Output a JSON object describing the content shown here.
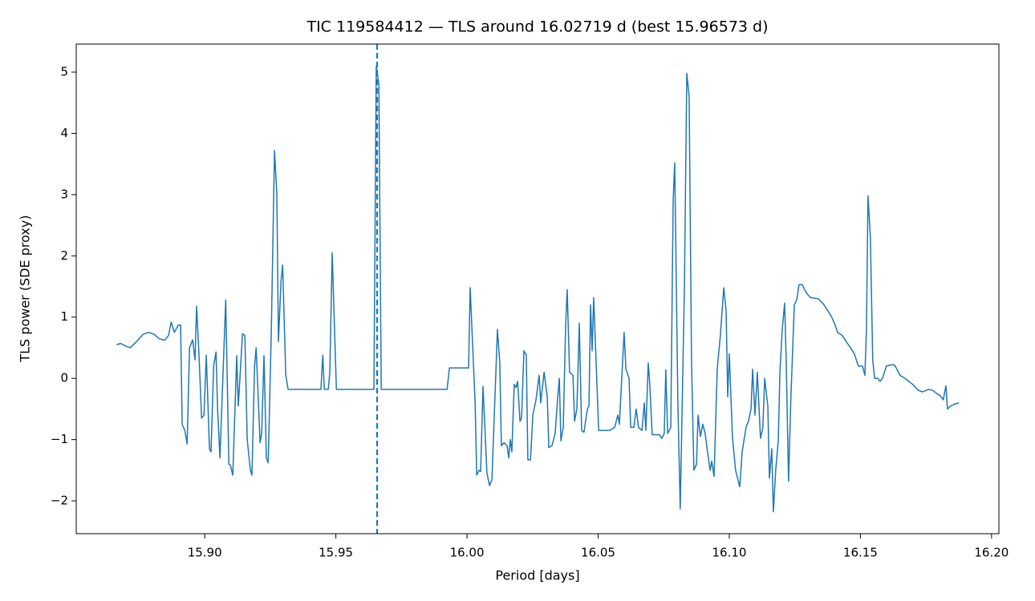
{
  "chart_data": {
    "type": "line",
    "title": "TIC 119584412 — TLS around 16.02719 d (best 15.96573 d)",
    "xlabel": "Period [days]",
    "ylabel": "TLS power (SDE proxy)",
    "xlim": [
      15.851,
      16.2028
    ],
    "ylim": [
      -2.536,
      5.458
    ],
    "xticks": [
      {
        "value": 15.9,
        "label": "15.90"
      },
      {
        "value": 15.95,
        "label": "15.95"
      },
      {
        "value": 16.0,
        "label": "16.00"
      },
      {
        "value": 16.05,
        "label": "16.05"
      },
      {
        "value": 16.1,
        "label": "16.10"
      },
      {
        "value": 16.15,
        "label": "16.15"
      },
      {
        "value": 16.2,
        "label": "16.20"
      }
    ],
    "yticks": [
      {
        "value": -2,
        "label": "−2"
      },
      {
        "value": -1,
        "label": "−1"
      },
      0,
      1,
      2,
      3,
      4,
      5
    ],
    "grid": false,
    "vline": {
      "x": 15.96573,
      "color": "#1f77b4",
      "style": "dashed"
    },
    "x": [
      15.8664,
      15.8679,
      15.8703,
      15.8716,
      15.874,
      15.8765,
      15.8786,
      15.8807,
      15.8826,
      15.8847,
      15.8862,
      15.8872,
      15.8884,
      15.8899,
      15.8908,
      15.8914,
      15.8924,
      15.8933,
      15.8942,
      15.8954,
      15.8963,
      15.8969,
      15.8979,
      15.8988,
      15.8997,
      15.9006,
      15.9018,
      15.9024,
      15.9034,
      15.9043,
      15.9049,
      15.9058,
      15.908,
      15.9092,
      15.9098,
      15.9107,
      15.9122,
      15.9128,
      15.9144,
      15.9153,
      15.9162,
      15.9174,
      15.918,
      15.919,
      15.9196,
      15.9211,
      15.9217,
      15.9226,
      15.9235,
      15.9242,
      15.9254,
      15.9266,
      15.9275,
      15.9281,
      15.9291,
      15.9297,
      15.9309,
      15.9318,
      15.9443,
      15.945,
      15.9456,
      15.9471,
      15.9477,
      15.9486,
      15.9502,
      15.9645,
      15.9654,
      15.9664,
      15.9673,
      15.9924,
      15.9933,
      16.0006,
      16.0012,
      16.0031,
      16.0037,
      16.0046,
      16.0052,
      16.0061,
      16.0076,
      16.0086,
      16.0095,
      16.0116,
      16.0125,
      16.0131,
      16.0141,
      16.0153,
      16.0159,
      16.0165,
      16.0171,
      16.018,
      16.0187,
      16.0193,
      16.0202,
      16.0208,
      16.0217,
      16.0226,
      16.0232,
      16.0242,
      16.0251,
      16.0263,
      16.0275,
      16.0281,
      16.0294,
      16.0306,
      16.0312,
      16.0324,
      16.0336,
      16.0346,
      16.0352,
      16.0358,
      16.0367,
      16.0376,
      16.0382,
      16.0391,
      16.0404,
      16.041,
      16.0419,
      16.0428,
      16.0437,
      16.0446,
      16.0459,
      16.0465,
      16.0471,
      16.0477,
      16.0483,
      16.0502,
      16.0544,
      16.0563,
      16.0575,
      16.0581,
      16.0599,
      16.0606,
      16.0618,
      16.0624,
      16.0636,
      16.0645,
      16.0654,
      16.0667,
      16.0676,
      16.0682,
      16.0691,
      16.0697,
      16.0706,
      16.0734,
      16.0743,
      16.0752,
      16.0758,
      16.0765,
      16.0777,
      16.0786,
      16.0792,
      16.0804,
      16.0813,
      16.0829,
      16.0838,
      16.0847,
      16.0856,
      16.0865,
      16.0875,
      16.0881,
      16.089,
      16.0899,
      16.0908,
      16.0917,
      16.0927,
      16.0933,
      16.0942,
      16.0954,
      16.0966,
      16.0979,
      16.0988,
      16.0994,
      16.1,
      16.1012,
      16.1024,
      16.104,
      16.1049,
      16.1064,
      16.1073,
      16.1083,
      16.1089,
      16.1098,
      16.1107,
      16.1119,
      16.1128,
      16.1135,
      16.1147,
      16.1153,
      16.1162,
      16.1168,
      16.1177,
      16.1187,
      16.1193,
      16.1202,
      16.1211,
      16.1217,
      16.1226,
      16.1235,
      16.1248,
      16.1257,
      16.1266,
      16.1278,
      16.1287,
      16.1297,
      16.1309,
      16.1339,
      16.1358,
      16.1376,
      16.1388,
      16.1401,
      16.1413,
      16.1431,
      16.1446,
      16.1462,
      16.1477,
      16.1492,
      16.1508,
      16.1517,
      16.1523,
      16.1529,
      16.1538,
      16.1547,
      16.1554,
      16.1566,
      16.1575,
      16.1584,
      16.1599,
      16.1615,
      16.163,
      16.1639,
      16.1651,
      16.167,
      16.1685,
      16.17,
      16.1722,
      16.1737,
      16.1761,
      16.1777,
      16.1792,
      16.1804,
      16.1816,
      16.1826,
      16.1832,
      16.1844,
      16.1859,
      16.1875
    ],
    "series": [
      {
        "color": "#1f77b4",
        "values": [
          0.55,
          0.57,
          0.52,
          0.5,
          0.6,
          0.72,
          0.75,
          0.72,
          0.65,
          0.62,
          0.7,
          0.92,
          0.75,
          0.87,
          0.87,
          -0.75,
          -0.85,
          -1.07,
          0.5,
          0.63,
          0.3,
          1.18,
          0.3,
          -0.65,
          -0.6,
          0.38,
          -1.15,
          -1.2,
          0.2,
          0.43,
          -0.5,
          -1.3,
          1.28,
          -1.4,
          -1.42,
          -1.58,
          0.37,
          -0.45,
          0.73,
          0.7,
          -1.0,
          -1.5,
          -1.58,
          0.2,
          0.5,
          -1.05,
          -0.9,
          0.37,
          -1.3,
          -1.38,
          0.8,
          3.72,
          3.0,
          0.6,
          1.6,
          1.85,
          0.05,
          -0.18,
          -0.18,
          0.38,
          -0.18,
          -0.18,
          0.1,
          2.05,
          -0.18,
          -0.18,
          5.1,
          4.8,
          -0.18,
          -0.18,
          0.17,
          0.17,
          1.48,
          -0.4,
          -1.58,
          -1.5,
          -1.52,
          -0.13,
          -1.55,
          -1.75,
          -1.65,
          0.8,
          0.25,
          -1.1,
          -1.05,
          -1.1,
          -1.3,
          -1.0,
          -1.2,
          -0.1,
          -0.15,
          -0.05,
          -0.7,
          -0.65,
          0.45,
          0.38,
          -1.33,
          -1.33,
          -0.6,
          -0.35,
          0.05,
          -0.4,
          0.1,
          -0.3,
          -1.13,
          -1.1,
          -0.9,
          -0.3,
          0.0,
          -1.02,
          -0.8,
          0.85,
          1.45,
          0.1,
          0.05,
          -0.7,
          -0.5,
          0.9,
          -0.85,
          -0.88,
          -0.5,
          -0.45,
          1.2,
          0.45,
          1.32,
          -0.85,
          -0.85,
          -0.8,
          -0.6,
          -0.75,
          0.75,
          0.15,
          0.0,
          -0.8,
          -0.8,
          -0.5,
          -0.8,
          -0.85,
          -0.4,
          -0.85,
          0.25,
          -0.1,
          -0.92,
          -0.92,
          -0.98,
          -0.9,
          0.14,
          -0.9,
          -0.8,
          2.9,
          3.52,
          -0.4,
          -2.13,
          1.5,
          4.98,
          4.6,
          0.3,
          -1.5,
          -1.4,
          -0.6,
          -0.95,
          -0.75,
          -0.9,
          -1.2,
          -1.5,
          -1.35,
          -1.6,
          0.15,
          0.7,
          1.48,
          1.1,
          -0.3,
          0.4,
          -0.95,
          -1.5,
          -1.77,
          -1.2,
          -0.8,
          -0.7,
          -0.5,
          0.15,
          -0.6,
          0.1,
          -0.98,
          -0.8,
          0.0,
          -0.45,
          -1.63,
          -1.15,
          -2.18,
          -1.5,
          -1.0,
          0.1,
          0.8,
          1.23,
          0.3,
          -1.68,
          -0.3,
          1.2,
          1.28,
          1.53,
          1.53,
          1.45,
          1.38,
          1.32,
          1.3,
          1.22,
          1.1,
          1.02,
          0.9,
          0.75,
          0.7,
          0.6,
          0.5,
          0.4,
          0.2,
          0.2,
          0.05,
          0.8,
          2.98,
          2.3,
          0.3,
          0.0,
          0.0,
          -0.05,
          0.0,
          0.2,
          0.22,
          0.22,
          0.15,
          0.05,
          0.0,
          -0.05,
          -0.1,
          -0.2,
          -0.22,
          -0.18,
          -0.2,
          -0.25,
          -0.28,
          -0.35,
          -0.12,
          -0.5,
          -0.45,
          -0.42,
          -0.4
        ]
      }
    ]
  }
}
